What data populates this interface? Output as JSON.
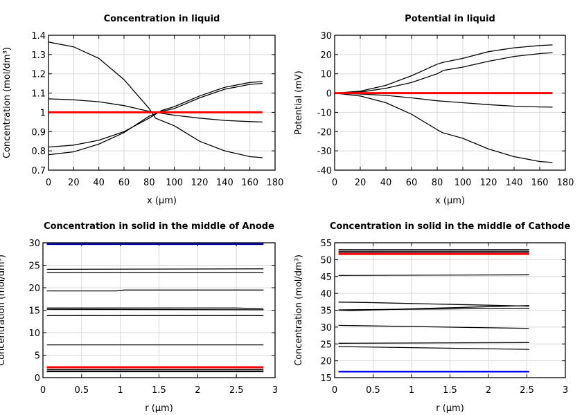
{
  "chart_data": [
    {
      "type": "line",
      "title": "Concentration in liquid",
      "xlabel": "x (µm)",
      "ylabel": "Concentration (mol/dm³)",
      "xlim": [
        0,
        180
      ],
      "ylim": [
        0.7,
        1.4
      ],
      "xticks": [
        0,
        20,
        40,
        60,
        80,
        100,
        120,
        140,
        160,
        180
      ],
      "yticks": [
        0.7,
        0.8,
        0.9,
        1,
        1.1,
        1.2,
        1.3,
        1.4
      ],
      "grid": true,
      "series": [
        {
          "color": "#000000",
          "x": [
            0,
            20,
            40,
            60,
            80,
            85,
            100,
            120,
            140,
            160,
            170
          ],
          "y": [
            1.365,
            1.34,
            1.28,
            1.17,
            1.02,
            0.97,
            0.93,
            0.85,
            0.8,
            0.77,
            0.765
          ]
        },
        {
          "color": "#000000",
          "x": [
            0,
            20,
            40,
            60,
            80,
            100,
            120,
            140,
            160,
            170
          ],
          "y": [
            1.07,
            1.065,
            1.055,
            1.035,
            1.005,
            0.985,
            0.97,
            0.958,
            0.952,
            0.95
          ]
        },
        {
          "color": "#000000",
          "x": [
            0,
            20,
            40,
            60,
            80,
            90,
            100,
            120,
            140,
            160,
            170
          ],
          "y": [
            0.82,
            0.83,
            0.855,
            0.9,
            0.97,
            1.01,
            1.03,
            1.085,
            1.13,
            1.155,
            1.16
          ]
        },
        {
          "color": "#000000",
          "x": [
            0,
            20,
            40,
            60,
            80,
            90,
            100,
            120,
            140,
            160,
            170
          ],
          "y": [
            0.78,
            0.795,
            0.835,
            0.895,
            0.98,
            1.005,
            1.02,
            1.075,
            1.12,
            1.145,
            1.15
          ]
        },
        {
          "color": "#ff0000",
          "x": [
            0,
            170
          ],
          "y": [
            1,
            1
          ]
        }
      ]
    },
    {
      "type": "line",
      "title": "Potential in liquid",
      "xlabel": "x (µm)",
      "ylabel": "Potential (mV)",
      "xlim": [
        0,
        180
      ],
      "ylim": [
        -40,
        30
      ],
      "xticks": [
        0,
        20,
        40,
        60,
        80,
        100,
        120,
        140,
        160,
        180
      ],
      "yticks": [
        -40,
        -30,
        -20,
        -10,
        0,
        10,
        20,
        30
      ],
      "grid": true,
      "series": [
        {
          "color": "#000000",
          "x": [
            0,
            20,
            40,
            60,
            80,
            85,
            100,
            120,
            140,
            160,
            170
          ],
          "y": [
            0,
            1,
            4,
            9,
            15,
            16,
            18,
            21.5,
            23.5,
            24.7,
            25
          ]
        },
        {
          "color": "#000000",
          "x": [
            0,
            20,
            40,
            60,
            80,
            85,
            100,
            120,
            140,
            160,
            170
          ],
          "y": [
            0,
            0.5,
            2.5,
            5.5,
            10,
            11.8,
            13.5,
            16.5,
            19,
            20.5,
            21
          ]
        },
        {
          "color": "#000000",
          "x": [
            0,
            20,
            40,
            60,
            80,
            100,
            120,
            140,
            160,
            170
          ],
          "y": [
            0,
            -0.5,
            -1.2,
            -2.5,
            -4,
            -5,
            -6,
            -6.8,
            -7.2,
            -7.3
          ]
        },
        {
          "color": "#000000",
          "x": [
            0,
            20,
            40,
            60,
            80,
            84,
            100,
            120,
            140,
            160,
            170
          ],
          "y": [
            0,
            -1.5,
            -5,
            -11,
            -19,
            -20.5,
            -23.5,
            -29,
            -33,
            -35.5,
            -36
          ]
        },
        {
          "color": "#ff0000",
          "x": [
            0,
            170
          ],
          "y": [
            0,
            0
          ]
        }
      ]
    },
    {
      "type": "line",
      "title": "Concentration in solid in the middle of Anode",
      "xlabel": "r (µm)",
      "ylabel": "Concentration (mol/dm³)",
      "xlim": [
        0,
        3
      ],
      "ylim": [
        0,
        30
      ],
      "xticks": [
        0,
        0.5,
        1,
        1.5,
        2,
        2.5,
        3
      ],
      "yticks": [
        0,
        5,
        10,
        15,
        20,
        25,
        30
      ],
      "grid": true,
      "series": [
        {
          "color": "#0000aa",
          "x": [
            0.05,
            2.85
          ],
          "y": [
            29.7,
            29.7
          ]
        },
        {
          "color": "#000000",
          "x": [
            0.05,
            2.85
          ],
          "y": [
            24.1,
            24.2
          ]
        },
        {
          "color": "#000000",
          "x": [
            0.05,
            2.85
          ],
          "y": [
            23.4,
            23.4
          ]
        },
        {
          "color": "#000000",
          "x": [
            0.05,
            0.95,
            1.05,
            2.85
          ],
          "y": [
            19.3,
            19.3,
            19.5,
            19.5
          ]
        },
        {
          "color": "#000000",
          "x": [
            0.05,
            2.5,
            2.85
          ],
          "y": [
            15.5,
            15.5,
            15.3
          ]
        },
        {
          "color": "#000000",
          "x": [
            0.05,
            2.85
          ],
          "y": [
            15.2,
            15.1
          ]
        },
        {
          "color": "#000000",
          "x": [
            0.05,
            2.85
          ],
          "y": [
            13.8,
            13.8
          ]
        },
        {
          "color": "#000000",
          "x": [
            0.05,
            2.85
          ],
          "y": [
            7.3,
            7.3
          ]
        },
        {
          "color": "#000000",
          "x": [
            0.05,
            2.85
          ],
          "y": [
            1.8,
            1.8
          ]
        },
        {
          "color": "#000000",
          "x": [
            0.05,
            2.85
          ],
          "y": [
            1.5,
            1.5
          ]
        },
        {
          "color": "#000000",
          "x": [
            0.05,
            2.85
          ],
          "y": [
            1.3,
            1.3
          ]
        },
        {
          "color": "#ff0000",
          "x": [
            0.05,
            2.85
          ],
          "y": [
            2.3,
            2.3
          ]
        }
      ]
    },
    {
      "type": "line",
      "title": "Concentration in solid in the middle of Cathode",
      "xlabel": "r (µm)",
      "ylabel": "Concentration (mol/dm³)",
      "xlim": [
        0,
        3
      ],
      "ylim": [
        15,
        55
      ],
      "xticks": [
        0,
        0.5,
        1,
        1.5,
        2,
        2.5,
        3
      ],
      "yticks": [
        15,
        20,
        25,
        30,
        35,
        40,
        45,
        50,
        55
      ],
      "grid": true,
      "series": [
        {
          "color": "#000000",
          "x": [
            0.05,
            2.53
          ],
          "y": [
            53,
            53
          ]
        },
        {
          "color": "#000000",
          "x": [
            0.05,
            2.53
          ],
          "y": [
            52.5,
            52.5
          ]
        },
        {
          "color": "#000000",
          "x": [
            0.05,
            2.53
          ],
          "y": [
            52.1,
            52.1
          ]
        },
        {
          "color": "#ff0000",
          "x": [
            0.05,
            2.53
          ],
          "y": [
            51.7,
            51.7
          ]
        },
        {
          "color": "#000000",
          "x": [
            0.05,
            2.53
          ],
          "y": [
            45.3,
            45.5
          ]
        },
        {
          "color": "#000000",
          "x": [
            0.05,
            0.4,
            2.53
          ],
          "y": [
            37.4,
            37.3,
            36.2
          ]
        },
        {
          "color": "#000000",
          "x": [
            0.05,
            0.2,
            2.53
          ],
          "y": [
            35,
            34.9,
            36.4
          ]
        },
        {
          "color": "#000000",
          "x": [
            0.05,
            2.53
          ],
          "y": [
            35.1,
            35.6
          ]
        },
        {
          "color": "#000000",
          "x": [
            0.05,
            2.53
          ],
          "y": [
            30.5,
            29.6
          ]
        },
        {
          "color": "#000000",
          "x": [
            0.05,
            2.53
          ],
          "y": [
            25.2,
            25.4
          ]
        },
        {
          "color": "#000000",
          "x": [
            0.05,
            2.53
          ],
          "y": [
            24.2,
            23.4
          ]
        },
        {
          "color": "#0000ff",
          "x": [
            0.05,
            2.53
          ],
          "y": [
            16.8,
            16.8
          ]
        }
      ]
    }
  ]
}
